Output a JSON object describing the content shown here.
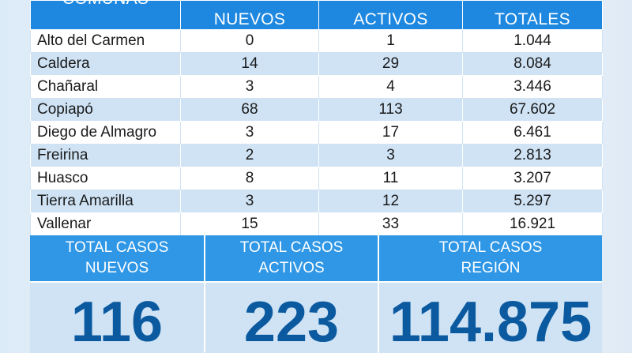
{
  "table": {
    "headers": [
      "COMUNAS",
      "NUEVOS",
      "ACTIVOS",
      "TOTALES"
    ],
    "rows": [
      {
        "comuna": "Alto del Carmen",
        "nuevos": "0",
        "activos": "1",
        "totales": "1.044"
      },
      {
        "comuna": "Caldera",
        "nuevos": "14",
        "activos": "29",
        "totales": "8.084"
      },
      {
        "comuna": "Chañaral",
        "nuevos": "3",
        "activos": "4",
        "totales": "3.446"
      },
      {
        "comuna": "Copiapó",
        "nuevos": "68",
        "activos": "113",
        "totales": "67.602"
      },
      {
        "comuna": "Diego de Almagro",
        "nuevos": "3",
        "activos": "17",
        "totales": "6.461"
      },
      {
        "comuna": "Freirina",
        "nuevos": "2",
        "activos": "3",
        "totales": "2.813"
      },
      {
        "comuna": "Huasco",
        "nuevos": "8",
        "activos": "11",
        "totales": "3.207"
      },
      {
        "comuna": "Tierra Amarilla",
        "nuevos": "3",
        "activos": "12",
        "totales": "5.297"
      },
      {
        "comuna": "Vallenar",
        "nuevos": "15",
        "activos": "33",
        "totales": "16.921"
      }
    ]
  },
  "totals": {
    "nuevos": {
      "line1": "TOTAL CASOS",
      "line2": "NUEVOS",
      "value": "116"
    },
    "activos": {
      "line1": "TOTAL CASOS",
      "line2": "ACTIVOS",
      "value": "223"
    },
    "region": {
      "line1": "TOTAL CASOS",
      "line2": "REGIÓN",
      "value": "114.875"
    }
  },
  "colors": {
    "header_blue": "#1e88e0",
    "row_alt": "#cfe3f5",
    "value_blue": "#0b5aa0"
  }
}
